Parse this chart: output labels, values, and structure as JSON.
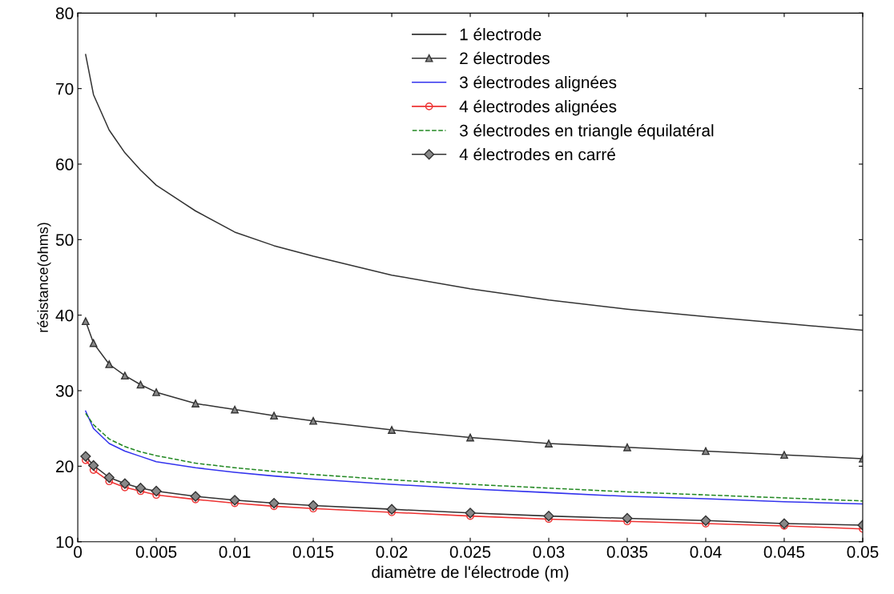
{
  "chart_data": {
    "type": "line",
    "xlabel": "diamètre de l'électrode (m)",
    "ylabel": "résistance(ohms)",
    "x": [
      0.0005,
      0.001,
      0.002,
      0.003,
      0.004,
      0.005,
      0.0075,
      0.01,
      0.0125,
      0.015,
      0.02,
      0.025,
      0.03,
      0.035,
      0.04,
      0.045,
      0.05
    ],
    "series": [
      {
        "name": "1 électrode",
        "color": "#333333",
        "marker": "none",
        "line_style": "solid",
        "values": [
          74.5,
          69.2,
          64.5,
          61.5,
          59.2,
          57.2,
          53.8,
          51.0,
          49.2,
          47.8,
          45.3,
          43.5,
          42.0,
          40.8,
          39.8,
          38.9,
          38.0
        ]
      },
      {
        "name": "2 électrodes",
        "color": "#333333",
        "marker": "triangle",
        "line_style": "solid",
        "values": [
          39.2,
          36.3,
          33.5,
          32.0,
          30.8,
          29.8,
          28.3,
          27.5,
          26.7,
          26.0,
          24.8,
          23.8,
          23.0,
          22.5,
          22.0,
          21.5,
          21.0
        ]
      },
      {
        "name": "3 électrodes alignées",
        "color": "#3333ee",
        "marker": "none",
        "line_style": "solid",
        "values": [
          27.3,
          25.0,
          23.0,
          22.0,
          21.3,
          20.6,
          19.8,
          19.2,
          18.7,
          18.3,
          17.6,
          17.0,
          16.5,
          16.0,
          15.7,
          15.3,
          15.0
        ]
      },
      {
        "name": "4 électrodes alignées",
        "color": "#ee3333",
        "marker": "circle",
        "line_style": "solid",
        "values": [
          20.8,
          19.5,
          18.0,
          17.2,
          16.7,
          16.2,
          15.6,
          15.1,
          14.7,
          14.4,
          13.9,
          13.4,
          13.0,
          12.7,
          12.4,
          12.1,
          11.7
        ]
      },
      {
        "name": "3 électrodes en triangle équilatéral",
        "color": "#228822",
        "marker": "none",
        "line_style": "dashed",
        "values": [
          27.0,
          25.5,
          23.6,
          22.6,
          21.9,
          21.4,
          20.4,
          19.8,
          19.3,
          18.9,
          18.2,
          17.6,
          17.1,
          16.6,
          16.2,
          15.8,
          15.4
        ]
      },
      {
        "name": "4 électrodes en carré",
        "color": "#333333",
        "marker": "diamond",
        "line_style": "solid",
        "values": [
          21.3,
          20.1,
          18.5,
          17.7,
          17.1,
          16.7,
          16.0,
          15.5,
          15.1,
          14.8,
          14.3,
          13.8,
          13.4,
          13.1,
          12.8,
          12.4,
          12.2
        ]
      }
    ],
    "xlim": [
      0,
      0.05
    ],
    "xticks": [
      0,
      0.005,
      0.01,
      0.015,
      0.02,
      0.025,
      0.03,
      0.035,
      0.04,
      0.045,
      0.05
    ],
    "ylim": [
      10,
      80
    ],
    "yticks": [
      10,
      20,
      30,
      40,
      50,
      60,
      70,
      80
    ],
    "grid": false,
    "legend": "top right"
  }
}
